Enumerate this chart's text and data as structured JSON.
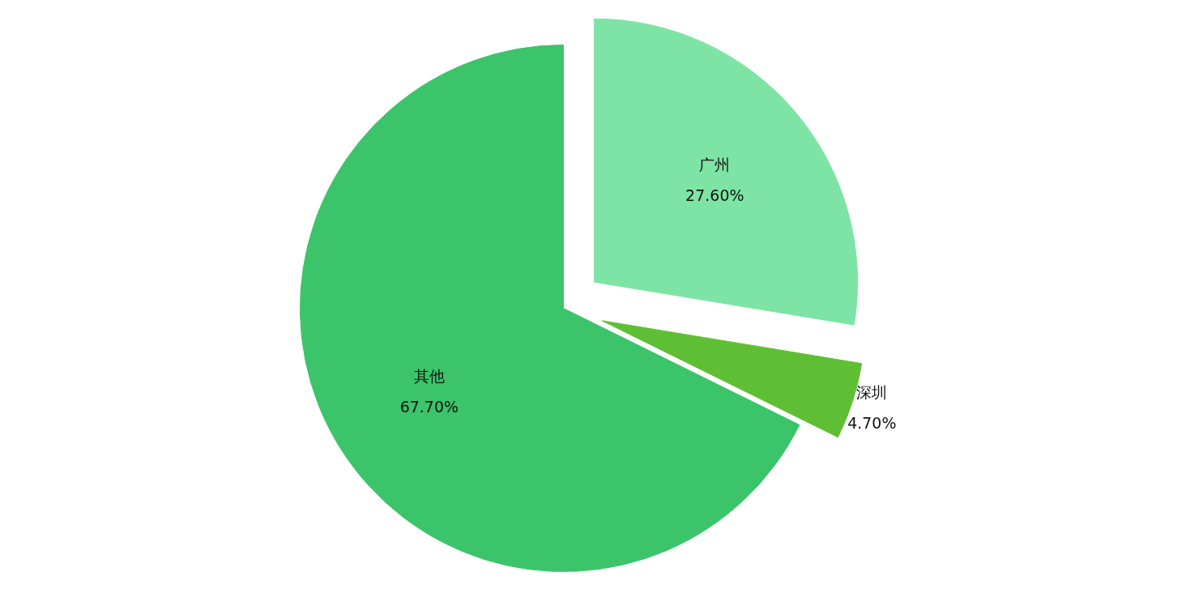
{
  "chart_data": {
    "type": "pie",
    "categories": [
      "广州",
      "深圳",
      "其他"
    ],
    "values": [
      27.6,
      4.7,
      67.7
    ],
    "colors": [
      "#7de4a5",
      "#5fbf34",
      "#3cc46a"
    ],
    "value_labels": [
      "27.60%",
      "4.70%",
      "67.70%"
    ]
  }
}
